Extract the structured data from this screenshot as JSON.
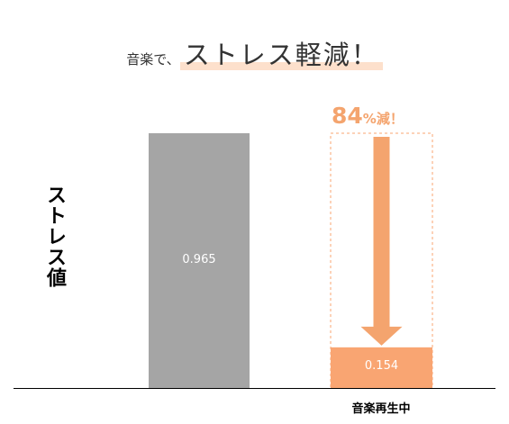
{
  "title": {
    "prefix": "音楽で、",
    "main": "ストレス軽減！"
  },
  "reduction_callout": {
    "number": "84",
    "suffix": "%減！"
  },
  "colors": {
    "bar_gray": "#a5a5a5",
    "bar_orange": "#f9a572",
    "arrow": "#f4a46e",
    "highlight": "#fde0cc"
  },
  "chart_data": {
    "type": "bar",
    "categories": [
      "",
      "音楽再生中"
    ],
    "values": [
      0.965,
      0.154
    ],
    "value_labels": [
      "0.965",
      "0.154"
    ],
    "ylabel": "ストレス値",
    "ylim": [
      0,
      1
    ],
    "grid": false,
    "legend": "none"
  }
}
